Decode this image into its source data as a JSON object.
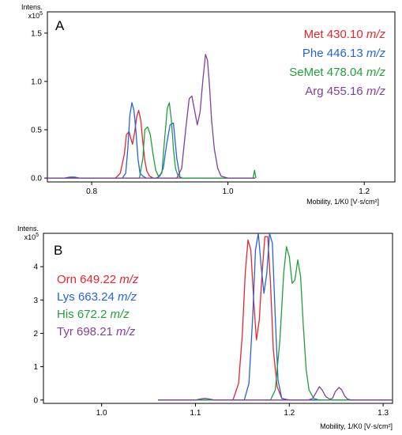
{
  "chart_data": [
    {
      "type": "line",
      "panel_label": "A",
      "ylabel": "Intens.",
      "yexp": "x10",
      "yexp_power": "5",
      "xlabel": "Mobility, 1/K0 [V·s/cm²]",
      "xlim": [
        0.735,
        1.245
      ],
      "ylim": [
        -0.04,
        1.72
      ],
      "xticks": [
        0.8,
        1.0,
        1.2
      ],
      "xtick_labels": [
        "0.8",
        "1.0",
        "1.2"
      ],
      "yticks": [
        0.0,
        0.5,
        1.0,
        1.5
      ],
      "ytick_labels": [
        "0.0",
        "0.5",
        "1.0",
        "1.5"
      ],
      "legend_placement": "top-right",
      "series": [
        {
          "name": "Met 430.10",
          "unit": "m/z",
          "color": "#e8242d",
          "x": [
            0.735,
            0.835,
            0.842,
            0.848,
            0.851,
            0.855,
            0.857,
            0.86,
            0.863,
            0.866,
            0.869,
            0.872,
            0.875,
            0.878,
            0.881,
            0.885,
            0.89,
            0.9,
            1.04
          ],
          "y": [
            0.0,
            0.0,
            0.05,
            0.25,
            0.45,
            0.48,
            0.42,
            0.35,
            0.47,
            0.63,
            0.7,
            0.6,
            0.38,
            0.18,
            0.07,
            0.02,
            0.0,
            0.0,
            0.0
          ]
        },
        {
          "name": "Phe 446.13",
          "unit": "m/z",
          "color": "#2563d8",
          "x": [
            0.76,
            0.768,
            0.775,
            0.782,
            0.845,
            0.85,
            0.853,
            0.856,
            0.859,
            0.862,
            0.865,
            0.868,
            0.871,
            0.875,
            0.88,
            0.895,
            0.9,
            0.905,
            0.91,
            0.915,
            0.92,
            0.925,
            0.93,
            1.04
          ],
          "y": [
            0.0,
            0.01,
            0.01,
            0.0,
            0.0,
            0.05,
            0.3,
            0.65,
            0.78,
            0.7,
            0.48,
            0.2,
            0.05,
            0.02,
            0.0,
            0.0,
            0.02,
            0.1,
            0.35,
            0.55,
            0.57,
            0.2,
            0.0,
            0.0
          ]
        },
        {
          "name": "SeMet 478.04",
          "unit": "m/z",
          "color": "#22a038",
          "x": [
            0.735,
            0.87,
            0.875,
            0.878,
            0.882,
            0.886,
            0.89,
            0.894,
            0.898,
            0.903,
            0.907,
            0.911,
            0.914,
            0.917,
            0.92,
            0.923,
            0.927,
            0.933,
            1.037,
            1.039,
            1.041
          ],
          "y": [
            0.0,
            0.0,
            0.2,
            0.5,
            0.53,
            0.45,
            0.25,
            0.08,
            0.02,
            0.05,
            0.4,
            0.72,
            0.78,
            0.6,
            0.3,
            0.1,
            0.02,
            0.0,
            0.0,
            0.08,
            0.0
          ]
        },
        {
          "name": "Arg 455.16",
          "unit": "m/z",
          "color": "#7f3fa0",
          "x": [
            0.735,
            0.925,
            0.932,
            0.938,
            0.943,
            0.947,
            0.951,
            0.955,
            0.959,
            0.963,
            0.967,
            0.97,
            0.973,
            0.976,
            0.98,
            0.985,
            0.99,
            1.0,
            1.04
          ],
          "y": [
            0.0,
            0.0,
            0.1,
            0.5,
            0.82,
            0.85,
            0.7,
            0.55,
            0.68,
            1.0,
            1.28,
            1.22,
            0.95,
            0.6,
            0.3,
            0.1,
            0.02,
            0.0,
            0.0
          ]
        }
      ]
    },
    {
      "type": "line",
      "panel_label": "B",
      "ylabel": "Intens.",
      "yexp": "x10",
      "yexp_power": "5",
      "xlabel": "Mobility, 1/K0 [V·s/cm²]",
      "xlim": [
        0.938,
        1.31
      ],
      "ylim": [
        -0.1,
        5.0
      ],
      "xticks": [
        1.0,
        1.1,
        1.2,
        1.3
      ],
      "xtick_labels": [
        "1.0",
        "1.1",
        "1.2",
        "1.3"
      ],
      "yticks": [
        0,
        1,
        2,
        3,
        4
      ],
      "ytick_labels": [
        "0",
        "1",
        "2",
        "3",
        "4"
      ],
      "legend_placement": "left",
      "series": [
        {
          "name": "Orn 649.22",
          "unit": "m/z",
          "color": "#e8242d",
          "x": [
            1.06,
            1.14,
            1.146,
            1.15,
            1.153,
            1.156,
            1.159,
            1.162,
            1.165,
            1.168,
            1.171,
            1.174,
            1.177,
            1.18,
            1.183,
            1.187,
            1.192,
            1.2,
            1.31
          ],
          "y": [
            0.0,
            0.0,
            0.5,
            2.0,
            3.8,
            4.8,
            4.5,
            3.0,
            1.8,
            2.4,
            3.8,
            4.9,
            4.9,
            3.5,
            1.5,
            0.4,
            0.05,
            0.0,
            0.0
          ]
        },
        {
          "name": "Lys 663.24",
          "unit": "m/z",
          "color": "#2563d8",
          "x": [
            1.06,
            1.152,
            1.157,
            1.161,
            1.164,
            1.167,
            1.17,
            1.173,
            1.176,
            1.179,
            1.182,
            1.185,
            1.188,
            1.192,
            1.198,
            1.31
          ],
          "y": [
            0.0,
            0.0,
            0.5,
            2.5,
            4.5,
            5.0,
            4.0,
            3.2,
            3.8,
            5.0,
            4.7,
            2.5,
            0.6,
            0.05,
            0.0,
            0.0
          ]
        },
        {
          "name": "His 672.2",
          "unit": "m/z",
          "color": "#22a038",
          "x": [
            1.06,
            1.18,
            1.185,
            1.19,
            1.194,
            1.197,
            1.2,
            1.203,
            1.206,
            1.209,
            1.212,
            1.215,
            1.218,
            1.221,
            1.226,
            1.232,
            1.31
          ],
          "y": [
            0.0,
            0.0,
            0.3,
            1.8,
            3.8,
            4.6,
            4.3,
            3.5,
            3.6,
            4.2,
            3.7,
            2.2,
            0.9,
            0.3,
            0.05,
            0.0,
            0.0
          ]
        },
        {
          "name": "Tyr 698.21",
          "unit": "m/z",
          "color": "#7f3fa0",
          "x": [
            1.06,
            1.1,
            1.105,
            1.11,
            1.115,
            1.12,
            1.22,
            1.225,
            1.229,
            1.232,
            1.235,
            1.239,
            1.243,
            1.246,
            1.249,
            1.253,
            1.256,
            1.259,
            1.262,
            1.266,
            1.31
          ],
          "y": [
            0.0,
            0.0,
            0.03,
            0.05,
            0.03,
            0.0,
            0.0,
            0.05,
            0.25,
            0.4,
            0.3,
            0.1,
            0.03,
            0.05,
            0.25,
            0.38,
            0.3,
            0.12,
            0.03,
            0.0,
            0.0
          ]
        }
      ]
    }
  ]
}
